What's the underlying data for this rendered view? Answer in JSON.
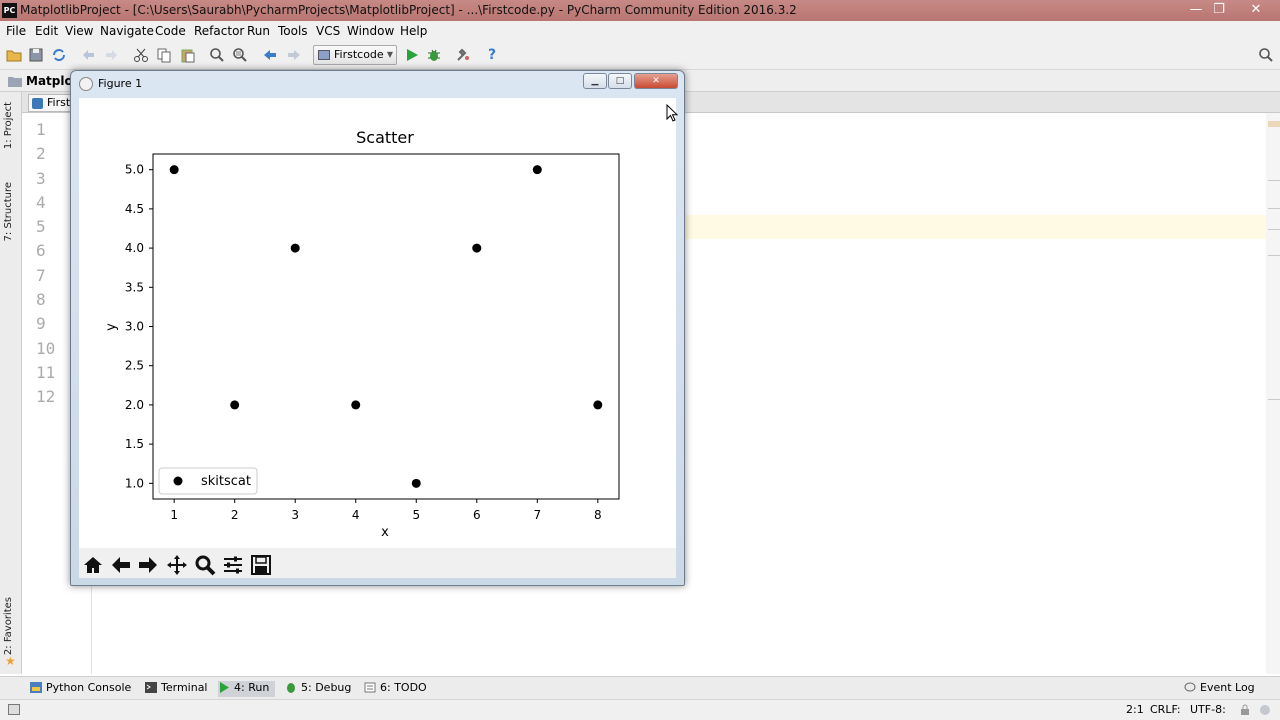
{
  "window": {
    "title": "MatplotlibProject - [C:\\Users\\Saurabh\\PycharmProjects\\MatplotlibProject] - ...\\Firstcode.py - PyCharm Community Edition 2016.3.2",
    "app_icon_text": "PC",
    "minimize": "—",
    "maximize": "❐",
    "close": "✕"
  },
  "menu": [
    "File",
    "Edit",
    "View",
    "Navigate",
    "Code",
    "Refactor",
    "Run",
    "Tools",
    "VCS",
    "Window",
    "Help"
  ],
  "toolbar": {
    "run_config": "Firstcode",
    "icons": [
      "open-folder-icon",
      "save-icon",
      "sync-icon",
      "undo-icon",
      "redo-icon",
      "cut-icon",
      "copy-icon",
      "paste-icon",
      "find-icon",
      "replace-icon",
      "back-icon",
      "forward-icon",
      "run-icon",
      "debug-icon",
      "settings-icon",
      "help-icon",
      "search-icon"
    ]
  },
  "navbar": {
    "project": "Matplotl"
  },
  "editor_tab": {
    "label": "Firstc"
  },
  "left_strip": {
    "project": "1: Project",
    "structure": "7: Structure",
    "favorites": "2: Favorites"
  },
  "editor": {
    "line_numbers": [
      "1",
      "2",
      "3",
      "4",
      "5",
      "6",
      "7",
      "8",
      "9",
      "10",
      "11",
      "12"
    ],
    "current_line": 5
  },
  "bottom_tabs": [
    {
      "label": "Python Console",
      "icon": "python-console-icon"
    },
    {
      "label": "Terminal",
      "icon": "terminal-icon"
    },
    {
      "label": "4: Run",
      "icon": "run-icon"
    },
    {
      "label": "5: Debug",
      "icon": "debug-icon"
    },
    {
      "label": "6: TODO",
      "icon": "todo-icon"
    }
  ],
  "event_log": "Event Log",
  "status": {
    "position": "2:1",
    "line_sep": "CRLF:",
    "encoding": "UTF-8:"
  },
  "figure": {
    "title": "Figure 1",
    "minimize": "▁",
    "maximize": "□",
    "close": "✕",
    "nav_tools": [
      "home-icon",
      "back-arrow-icon",
      "forward-arrow-icon",
      "pan-icon",
      "zoom-icon",
      "subplots-icon",
      "save-figure-icon"
    ]
  },
  "chart_data": {
    "type": "scatter",
    "title": "Scatter",
    "xlabel": "x",
    "ylabel": "y",
    "series": [
      {
        "name": "skitscat",
        "color": "#000000",
        "x": [
          1,
          2,
          3,
          4,
          5,
          6,
          7,
          8
        ],
        "y": [
          5,
          2,
          4,
          2,
          1,
          4,
          5,
          2
        ]
      }
    ],
    "xticks": [
      "1",
      "2",
      "3",
      "4",
      "5",
      "6",
      "7",
      "8"
    ],
    "yticks": [
      "1.0",
      "1.5",
      "2.0",
      "2.5",
      "3.0",
      "3.5",
      "4.0",
      "4.5",
      "5.0"
    ],
    "xlim": [
      0.65,
      8.35
    ],
    "ylim": [
      0.8,
      5.2
    ],
    "grid": false,
    "legend_position": "lower-left"
  }
}
